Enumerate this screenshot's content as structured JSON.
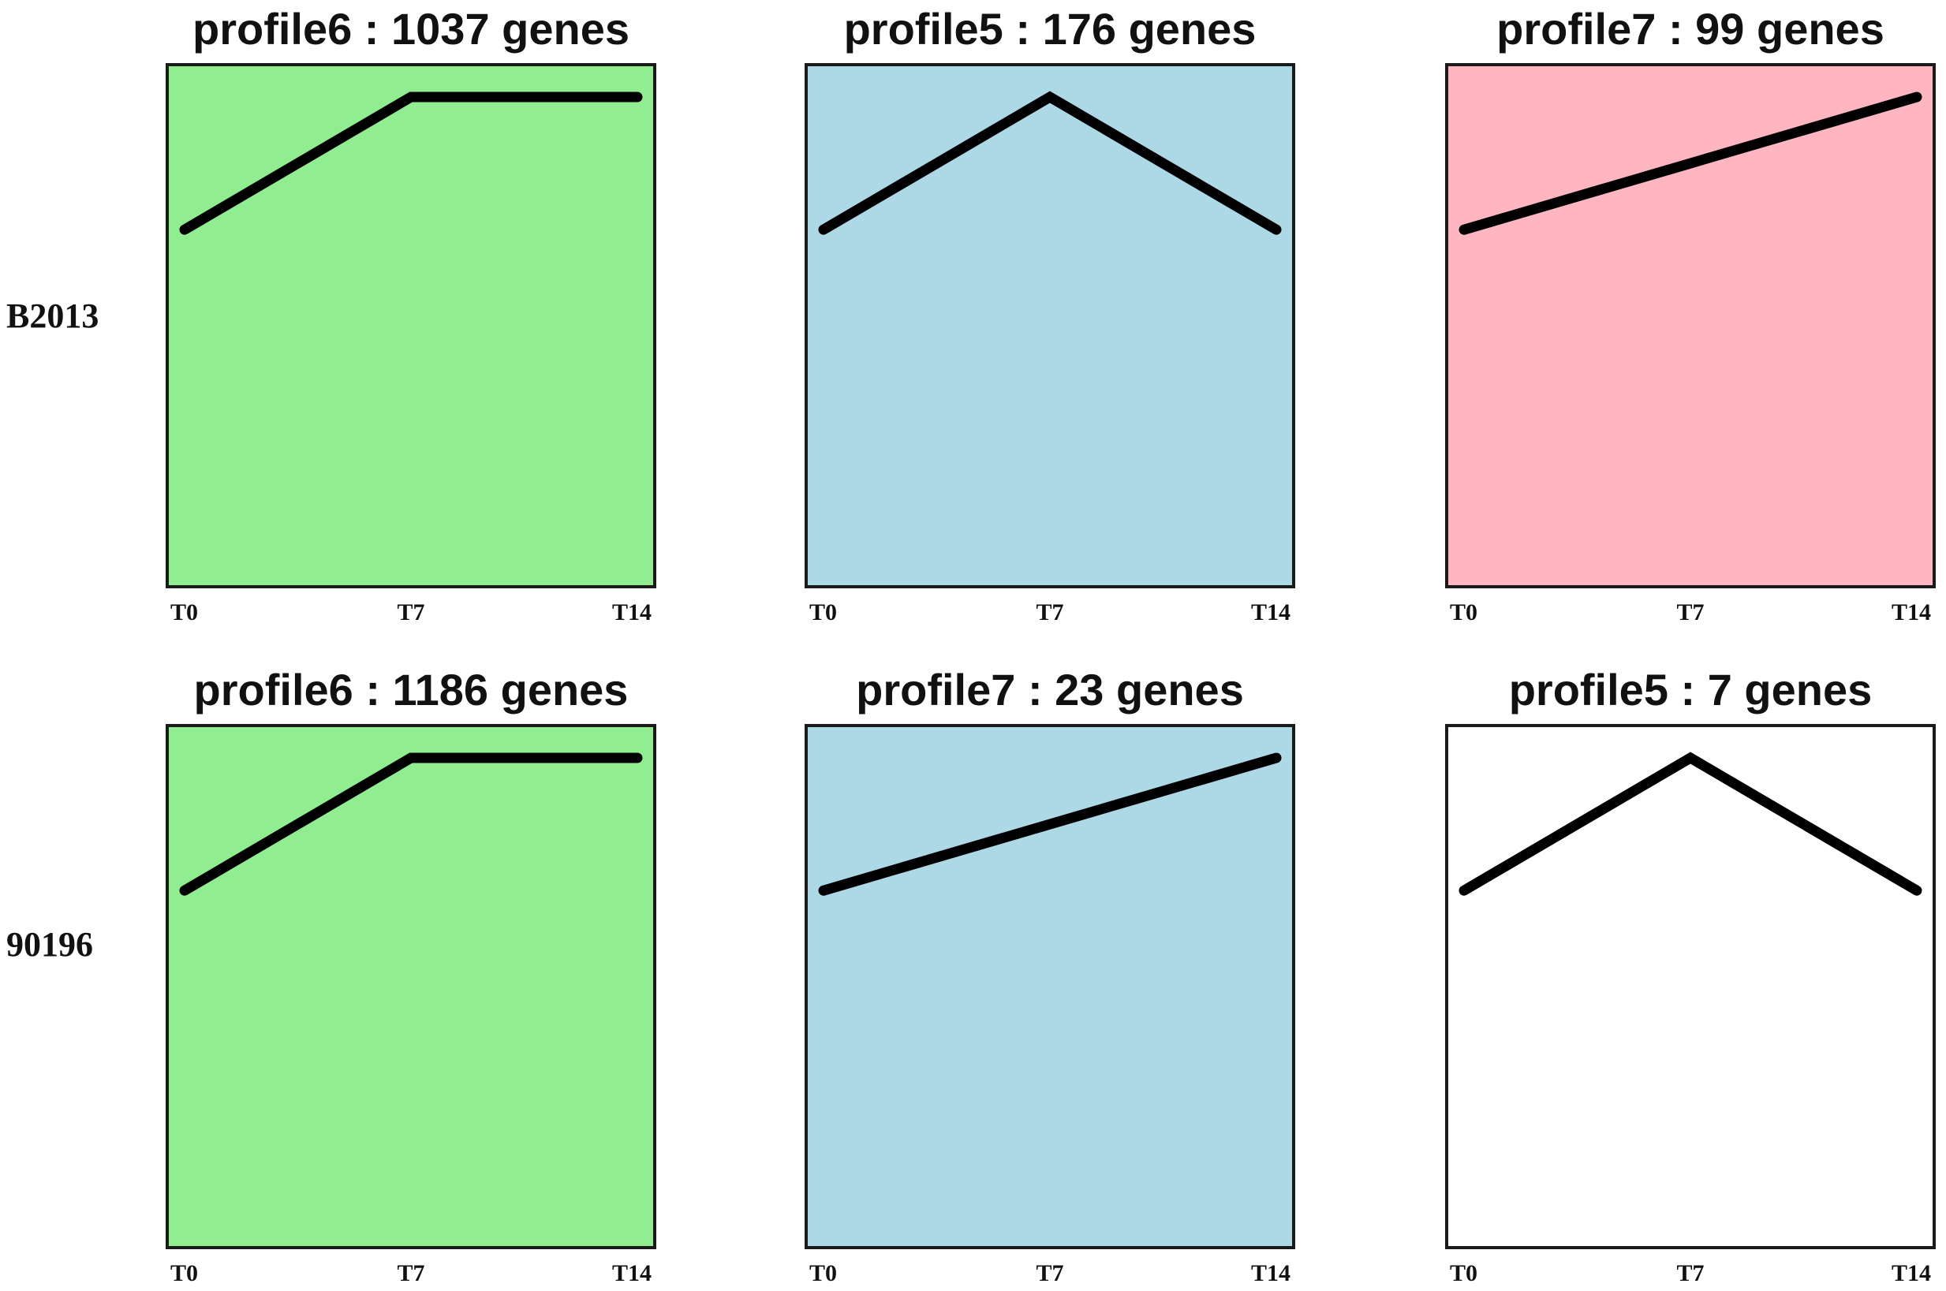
{
  "chart_data": {
    "type": "line",
    "description_rows": [
      "B2013",
      "90196"
    ],
    "time_points": [
      "T0",
      "T7",
      "T14"
    ],
    "ylim": [
      0,
      1
    ],
    "panels": [
      {
        "row": 0,
        "col": 0,
        "title": "profile6 : 1037 genes",
        "profile": "profile6",
        "gene_count": 1037,
        "color": "#90ee90",
        "values": [
          0.6,
          1.0,
          1.0
        ]
      },
      {
        "row": 0,
        "col": 1,
        "title": "profile5 : 176 genes",
        "profile": "profile5",
        "gene_count": 176,
        "color": "#add8e6",
        "values": [
          0.6,
          1.0,
          0.6
        ]
      },
      {
        "row": 0,
        "col": 2,
        "title": "profile7 : 99 genes",
        "profile": "profile7",
        "gene_count": 99,
        "color": "#ffb6c1",
        "values": [
          0.6,
          0.8,
          1.0
        ]
      },
      {
        "row": 1,
        "col": 0,
        "title": "profile6 : 1186 genes",
        "profile": "profile6",
        "gene_count": 1186,
        "color": "#90ee90",
        "values": [
          0.6,
          1.0,
          1.0
        ]
      },
      {
        "row": 1,
        "col": 1,
        "title": "profile7 : 23 genes",
        "profile": "profile7",
        "gene_count": 23,
        "color": "#add8e6",
        "values": [
          0.6,
          0.8,
          1.0
        ]
      },
      {
        "row": 1,
        "col": 2,
        "title": "profile5 : 7 genes",
        "profile": "profile5",
        "gene_count": 7,
        "color": "#ffffff",
        "values": [
          0.6,
          1.0,
          0.6
        ]
      }
    ]
  }
}
